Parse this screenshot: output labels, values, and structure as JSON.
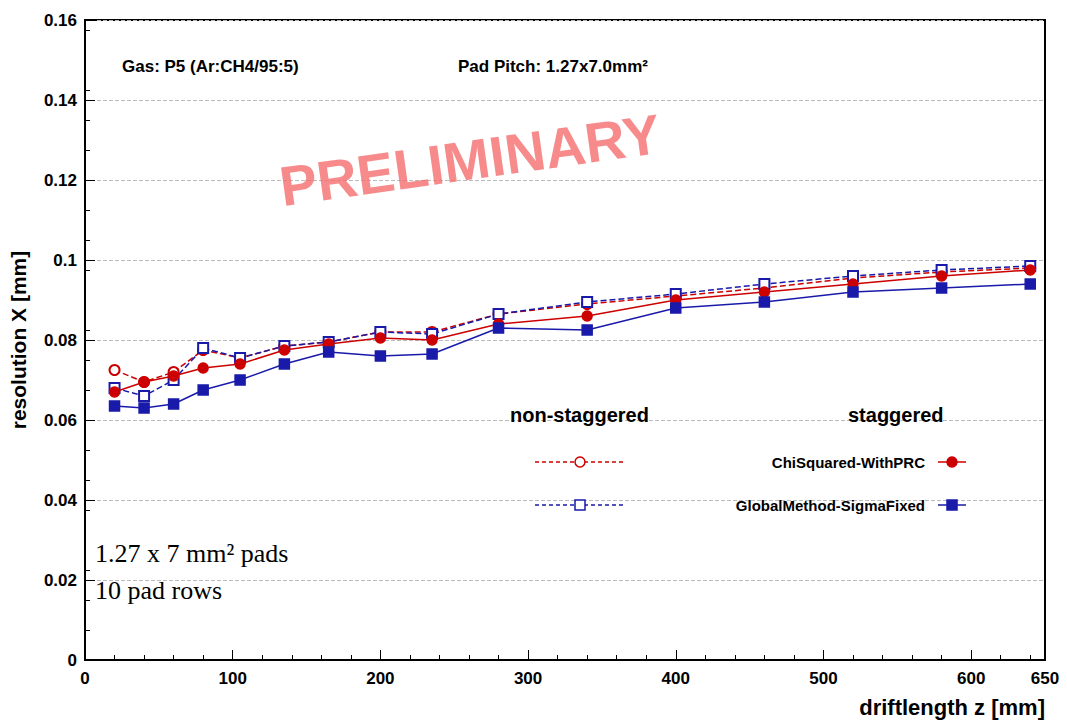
{
  "chart_data": {
    "type": "line",
    "title": "Gas: P5 (Ar:CH4/95:5)",
    "subtitle": "Pad Pitch: 1.27x7.0mm²",
    "watermark": "PRELIMINARY",
    "annotations": [
      "1.27 x 7 mm² pads",
      "10 pad rows"
    ],
    "legend_headers": [
      "non-staggered",
      "staggered"
    ],
    "x_label": "driftlength z [mm]",
    "y_label": "resolution X [mm]",
    "x": [
      20,
      40,
      60,
      80,
      105,
      135,
      165,
      200,
      235,
      280,
      340,
      400,
      460,
      520,
      580,
      640
    ],
    "series": [
      {
        "name": "ChiSquared-WithPRC",
        "color": "#cc0000",
        "marker": "open circle",
        "line_style": "dashed",
        "values": [
          0.0725,
          0.0695,
          0.072,
          0.0775,
          0.0755,
          0.0785,
          0.0795,
          0.082,
          0.082,
          0.0865,
          0.089,
          0.091,
          0.093,
          0.0955,
          0.097,
          0.098
        ]
      },
      {
        "name": "ChiSquared-WithPRC",
        "color": "#cc0000",
        "marker": "circle",
        "line_style": "solid",
        "values": [
          0.067,
          0.0695,
          0.071,
          0.073,
          0.074,
          0.0775,
          0.079,
          0.0805,
          0.08,
          0.084,
          0.086,
          0.09,
          0.092,
          0.094,
          0.096,
          0.0975
        ]
      },
      {
        "name": "GlobalMethod-SigmaFixed",
        "color": "#1a1aaa",
        "marker": "open square",
        "line_style": "dashed",
        "values": [
          0.068,
          0.066,
          0.07,
          0.078,
          0.0755,
          0.0785,
          0.0795,
          0.082,
          0.0815,
          0.0865,
          0.0895,
          0.0915,
          0.094,
          0.096,
          0.0975,
          0.0985
        ]
      },
      {
        "name": "GlobalMethod-SigmaFixed",
        "color": "#1a1aaa",
        "marker": "square",
        "line_style": "solid",
        "values": [
          0.0635,
          0.063,
          0.064,
          0.0675,
          0.07,
          0.074,
          0.077,
          0.076,
          0.0765,
          0.083,
          0.0825,
          0.088,
          0.0895,
          0.092,
          0.093,
          0.094
        ]
      }
    ],
    "xlim": [
      0,
      650
    ],
    "xticks": [
      0,
      100,
      200,
      300,
      400,
      500,
      600
    ],
    "ylim": [
      0,
      0.16
    ],
    "yticks": [
      0,
      0.02,
      0.04,
      0.06,
      0.08,
      0.1,
      0.12,
      0.14,
      0.16
    ],
    "grid": true,
    "legend": "lower right"
  }
}
